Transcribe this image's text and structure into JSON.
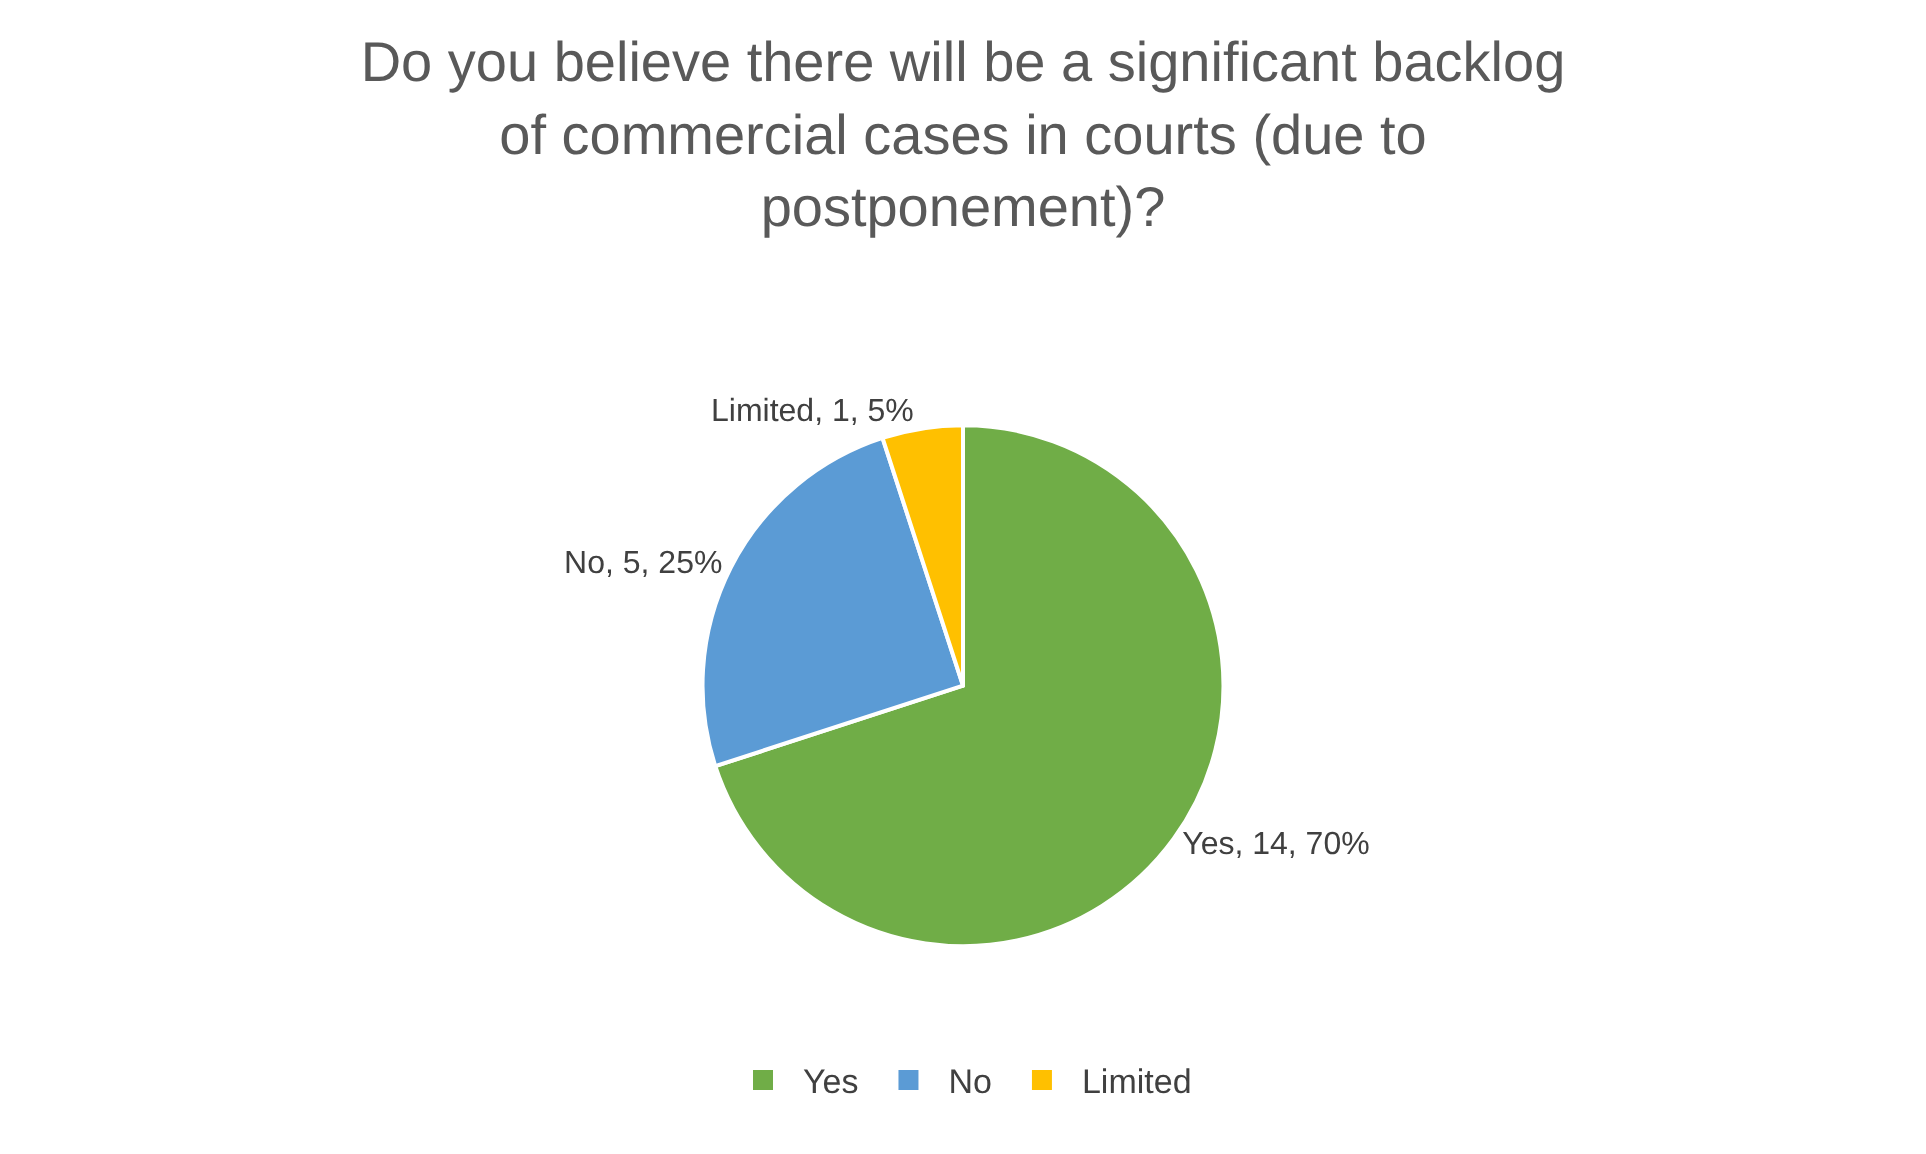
{
  "chart_data": {
    "type": "pie",
    "title": "Do you believe there will be a significant backlog of commercial cases in courts (due to postponement)?",
    "categories": [
      "Yes",
      "No",
      "Limited"
    ],
    "values": [
      14,
      5,
      1
    ],
    "value_labels": [
      "Yes, 14, 70%",
      "No, 5, 25%",
      "Limited, 1, 5%"
    ],
    "colors": [
      "#70ad47",
      "#5b9bd5",
      "#ffc000"
    ],
    "legend": "bottom"
  }
}
